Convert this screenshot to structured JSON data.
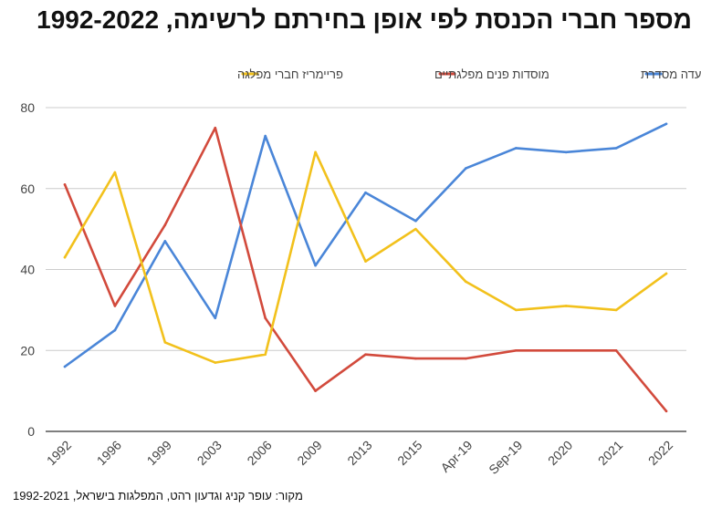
{
  "chart_data": {
    "type": "line",
    "title": "מספר חברי הכנסת לפי אופן בחירתם לרשימה, 1992-2022",
    "source": "מקור: עופר קניג וגדעון רהט, המפלגות בישראל, 1992-2021",
    "categories": [
      "1992",
      "1996",
      "1999",
      "2003",
      "2006",
      "2009",
      "2013",
      "2015",
      "Apr-19",
      "Sep-19",
      "2020",
      "2021",
      "2022"
    ],
    "ylim": [
      0,
      80
    ],
    "yticks": [
      0,
      20,
      40,
      60,
      80
    ],
    "grid": true,
    "legend_position": "top",
    "series": [
      {
        "name": "מנהיג המפלגה / ועדה מסדרת",
        "color": "#4a86d8",
        "values": [
          16,
          25,
          47,
          28,
          73,
          41,
          59,
          52,
          65,
          70,
          69,
          70,
          76
        ]
      },
      {
        "name": "מוסדות פנים מפלגתיים",
        "color": "#d24a3c",
        "values": [
          61,
          31,
          51,
          75,
          28,
          10,
          19,
          18,
          18,
          20,
          20,
          20,
          5
        ]
      },
      {
        "name": "פריימריז חברי מפלגה",
        "color": "#f2c11c",
        "values": [
          43,
          64,
          22,
          17,
          19,
          69,
          42,
          50,
          37,
          30,
          31,
          30,
          39
        ]
      }
    ]
  }
}
